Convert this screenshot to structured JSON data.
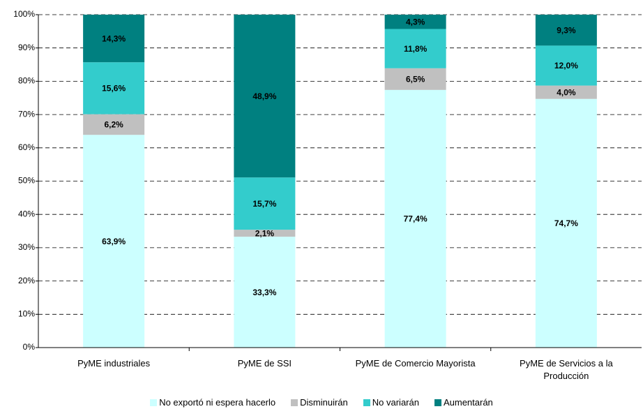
{
  "chart_data": {
    "type": "stacked_bar",
    "categories": [
      "PyME industriales",
      "PyME de SSI",
      "PyME de Comercio Mayorista",
      "PyME de Servicios a la Producción"
    ],
    "series": [
      {
        "name": "No exportó ni espera hacerlo",
        "color": "#ccffff",
        "values": [
          63.9,
          33.3,
          77.4,
          74.7
        ],
        "value_labels": [
          "63,9%",
          "33,3%",
          "77,4%",
          "74,7%"
        ]
      },
      {
        "name": "Disminuirán",
        "color": "#c0c0c0",
        "values": [
          6.2,
          2.1,
          6.5,
          4.0
        ],
        "value_labels": [
          "6,2%",
          "2,1%",
          "6,5%",
          "4,0%"
        ]
      },
      {
        "name": "No variarán",
        "color": "#33cccc",
        "values": [
          15.6,
          15.7,
          11.8,
          12.0
        ],
        "value_labels": [
          "15,6%",
          "15,7%",
          "11,8%",
          "12,0%"
        ]
      },
      {
        "name": "Aumentarán",
        "color": "#008080",
        "values": [
          14.3,
          48.9,
          4.3,
          9.3
        ],
        "value_labels": [
          "14,3%",
          "48,9%",
          "4,3%",
          "9,3%"
        ]
      }
    ],
    "ylim": [
      0,
      100
    ],
    "yticks": [
      {
        "value": 0,
        "label": "0%"
      },
      {
        "value": 10,
        "label": "10%"
      },
      {
        "value": 20,
        "label": "20%"
      },
      {
        "value": 30,
        "label": "30%"
      },
      {
        "value": 40,
        "label": "40%"
      },
      {
        "value": 50,
        "label": "50%"
      },
      {
        "value": 60,
        "label": "60%"
      },
      {
        "value": 70,
        "label": "70%"
      },
      {
        "value": 80,
        "label": "80%"
      },
      {
        "value": 90,
        "label": "90%"
      },
      {
        "value": 100,
        "label": "100%"
      }
    ],
    "grid": true,
    "legend": "bottom"
  }
}
